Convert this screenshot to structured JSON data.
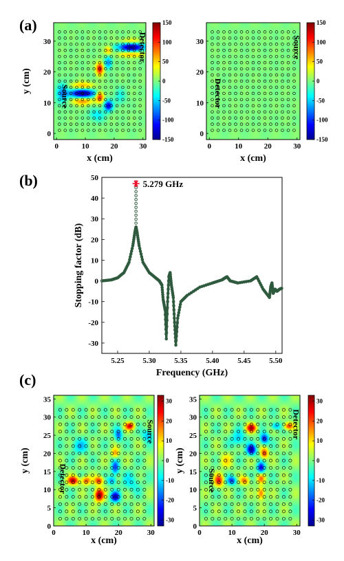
{
  "panels": [
    {
      "label": "(a)"
    },
    {
      "label": "(b)"
    },
    {
      "label": "(c)"
    }
  ],
  "chart_data": [
    {
      "type": "heatmap",
      "panel": "(a)",
      "xlabel": "x (cm)",
      "ylabel": "y (cm)",
      "xticks": [
        0,
        10,
        20,
        30
      ],
      "yticks": [
        0,
        10,
        20,
        30
      ],
      "xlim": [
        -1,
        31
      ],
      "ylim": [
        -2,
        36
      ],
      "colorbar": {
        "range": [
          -150,
          150
        ],
        "ticks": [
          150,
          100,
          50,
          0,
          -50,
          -100,
          -150
        ]
      },
      "labels": [
        {
          "text": "Source",
          "x": 2,
          "y": 12
        },
        {
          "text": "Detector",
          "x": 29,
          "y": 28
        }
      ],
      "hotspots": [
        {
          "x": 9,
          "y": 13,
          "value": -150,
          "sx": 3.2,
          "sy": 1.0
        },
        {
          "x": 9,
          "y": 10.5,
          "value": 70,
          "sx": 2.8,
          "sy": 0.9
        },
        {
          "x": 9,
          "y": 15.5,
          "value": 60,
          "sx": 2.8,
          "sy": 0.9
        },
        {
          "x": 26,
          "y": 28,
          "value": -150,
          "sx": 3.2,
          "sy": 0.9
        },
        {
          "x": 26,
          "y": 25.7,
          "value": 60,
          "sx": 3.0,
          "sy": 0.7
        },
        {
          "x": 26,
          "y": 30,
          "value": 40,
          "sx": 3.0,
          "sy": 0.7
        },
        {
          "x": 15,
          "y": 21,
          "value": 120,
          "sx": 0.9,
          "sy": 1.4
        },
        {
          "x": 15,
          "y": 12,
          "value": 110,
          "sx": 1.0,
          "sy": 1.2
        },
        {
          "x": 18,
          "y": 9,
          "value": -120,
          "sx": 1.0,
          "sy": 1.2
        },
        {
          "x": 18,
          "y": 23,
          "value": -70,
          "sx": 0.9,
          "sy": 1.4
        },
        {
          "x": 18,
          "y": 27,
          "value": 60,
          "sx": 0.9,
          "sy": 1.0
        },
        {
          "x": 2,
          "y": 13,
          "value": -60,
          "sx": 1.5,
          "sy": 2.5
        },
        {
          "x": 14,
          "y": 6,
          "value": -40,
          "sx": 2.0,
          "sy": 1.5
        },
        {
          "x": 22,
          "y": 12,
          "value": -30,
          "sx": 1.5,
          "sy": 2.0
        }
      ]
    },
    {
      "type": "heatmap",
      "panel": "(a)",
      "xlabel": "x (cm)",
      "ylabel": "",
      "xticks": [
        0,
        10,
        20,
        30
      ],
      "yticks": [
        0,
        10,
        20,
        30
      ],
      "xlim": [
        -1,
        31
      ],
      "ylim": [
        -2,
        36
      ],
      "colorbar": {
        "range": [
          -150,
          150
        ],
        "ticks": [
          150,
          100,
          50,
          0,
          -50,
          -100,
          -150
        ]
      },
      "labels": [
        {
          "text": "Source",
          "x": 29,
          "y": 28
        },
        {
          "text": "Detector",
          "x": 2,
          "y": 13
        }
      ],
      "hotspots": []
    },
    {
      "type": "line",
      "panel": "(b)",
      "xlabel": "Frequency (GHz)",
      "ylabel": "Stopping factor (dB)",
      "xlim": [
        5.225,
        5.51
      ],
      "ylim": [
        -35,
        50
      ],
      "xticks": [
        5.25,
        5.3,
        5.35,
        5.4,
        5.45,
        5.5
      ],
      "yticks": [
        50,
        40,
        30,
        20,
        10,
        0,
        -10,
        -20,
        -30
      ],
      "annotation": {
        "text": "5.279 GHz",
        "x": 5.279,
        "y": 46.5
      },
      "series": [
        {
          "x": [
            5.225,
            5.24,
            5.25,
            5.26,
            5.268,
            5.274,
            5.277,
            5.279,
            5.281,
            5.284,
            5.29,
            5.3,
            5.31,
            5.316,
            5.32,
            5.322,
            5.325,
            5.327,
            5.329,
            5.331,
            5.333,
            5.335,
            5.338,
            5.34,
            5.342,
            5.345,
            5.35,
            5.36,
            5.38,
            5.4,
            5.415,
            5.42,
            5.423,
            5.428,
            5.44,
            5.46,
            5.47,
            5.48,
            5.49,
            5.492,
            5.494,
            5.496,
            5.499,
            5.502,
            5.506,
            5.51
          ],
          "y": [
            0,
            0.5,
            1.5,
            4,
            9,
            17,
            23,
            26,
            23,
            17,
            9,
            4,
            1.5,
            0,
            -2,
            -9,
            -14,
            -28,
            -10,
            2,
            4,
            -2,
            -8,
            -20,
            -31,
            -18,
            -10,
            -7,
            -3,
            -1,
            0.5,
            1.5,
            2,
            0,
            -1,
            0,
            2,
            -4,
            -8,
            -3,
            -1,
            -6,
            -4,
            -5,
            -4,
            -3.5
          ]
        }
      ],
      "peak_marker": {
        "x": 5.279,
        "y": 47
      }
    },
    {
      "type": "heatmap",
      "panel": "(c)",
      "xlabel": "x (cm)",
      "ylabel": "y (cm)",
      "xticks": [
        0,
        10,
        20,
        30
      ],
      "yticks": [
        0,
        5,
        10,
        15,
        20,
        25,
        30,
        35
      ],
      "xlim": [
        0,
        31
      ],
      "ylim": [
        0,
        36
      ],
      "colorbar": {
        "range": [
          -33,
          33
        ],
        "ticks": [
          30,
          20,
          10,
          0,
          -10,
          -20,
          -30
        ]
      },
      "labels": [
        {
          "text": "Source",
          "x": 29,
          "y": 26
        },
        {
          "text": "Detector",
          "x": 2,
          "y": 13
        }
      ],
      "hotspots": [
        {
          "x": 6,
          "y": 12.5,
          "value": 28,
          "sx": 1.2,
          "sy": 0.8
        },
        {
          "x": 10,
          "y": 12.5,
          "value": 20,
          "sx": 1.0,
          "sy": 0.8
        },
        {
          "x": 14,
          "y": 12.5,
          "value": 22,
          "sx": 1.0,
          "sy": 0.8
        },
        {
          "x": 14,
          "y": 8.5,
          "value": 33,
          "sx": 1.0,
          "sy": 1.2
        },
        {
          "x": 19,
          "y": 8,
          "value": -28,
          "sx": 1.0,
          "sy": 1.0
        },
        {
          "x": 18,
          "y": 12.5,
          "value": -15,
          "sx": 0.9,
          "sy": 0.8
        },
        {
          "x": 19,
          "y": 16,
          "value": -20,
          "sx": 0.8,
          "sy": 1.4
        },
        {
          "x": 19,
          "y": 20,
          "value": 15,
          "sx": 0.8,
          "sy": 1.0
        },
        {
          "x": 20,
          "y": 25,
          "value": -18,
          "sx": 0.8,
          "sy": 1.2
        },
        {
          "x": 23.5,
          "y": 27.5,
          "value": 25,
          "sx": 1.0,
          "sy": 0.7
        },
        {
          "x": 29,
          "y": 25,
          "value": -12,
          "sx": 1.2,
          "sy": 1.2
        },
        {
          "x": 8,
          "y": 22,
          "value": -10,
          "sx": 2.0,
          "sy": 1.5
        },
        {
          "x": 24,
          "y": 12,
          "value": -8,
          "sx": 2.0,
          "sy": 2.0
        }
      ]
    },
    {
      "type": "heatmap",
      "panel": "(c)",
      "xlabel": "x (cm)",
      "ylabel": "y (cm)",
      "xticks": [
        0,
        10,
        20,
        30
      ],
      "yticks": [
        0,
        5,
        10,
        15,
        20,
        25,
        30,
        35
      ],
      "xlim": [
        0,
        31
      ],
      "ylim": [
        0,
        36
      ],
      "colorbar": {
        "range": [
          -33,
          33
        ],
        "ticks": [
          30,
          20,
          10,
          0,
          -10,
          -20,
          -30
        ]
      },
      "labels": [
        {
          "text": "Source",
          "x": 3,
          "y": 12.5
        },
        {
          "text": "Detector",
          "x": 29,
          "y": 28
        }
      ],
      "hotspots": [
        {
          "x": 6,
          "y": 12.5,
          "value": 22,
          "sx": 1.0,
          "sy": 1.2
        },
        {
          "x": 10,
          "y": 12.5,
          "value": -20,
          "sx": 1.0,
          "sy": 0.8
        },
        {
          "x": 14,
          "y": 12.5,
          "value": 18,
          "sx": 1.0,
          "sy": 0.8
        },
        {
          "x": 16,
          "y": 21,
          "value": -30,
          "sx": 1.0,
          "sy": 1.0
        },
        {
          "x": 16,
          "y": 27,
          "value": 28,
          "sx": 1.1,
          "sy": 0.8
        },
        {
          "x": 20,
          "y": 24,
          "value": -25,
          "sx": 0.9,
          "sy": 1.0
        },
        {
          "x": 20,
          "y": 20,
          "value": 22,
          "sx": 0.8,
          "sy": 1.0
        },
        {
          "x": 19,
          "y": 16,
          "value": -25,
          "sx": 0.8,
          "sy": 1.0
        },
        {
          "x": 19,
          "y": 9,
          "value": 20,
          "sx": 0.8,
          "sy": 1.2
        },
        {
          "x": 19,
          "y": 13,
          "value": 15,
          "sx": 0.8,
          "sy": 0.9
        },
        {
          "x": 23.5,
          "y": 27.5,
          "value": -15,
          "sx": 1.0,
          "sy": 0.7
        },
        {
          "x": 27.5,
          "y": 27.5,
          "value": 22,
          "sx": 1.0,
          "sy": 0.7
        },
        {
          "x": 12,
          "y": 24,
          "value": -12,
          "sx": 1.5,
          "sy": 1.5
        },
        {
          "x": 8,
          "y": 18,
          "value": 8,
          "sx": 1.5,
          "sy": 1.5
        }
      ]
    }
  ]
}
